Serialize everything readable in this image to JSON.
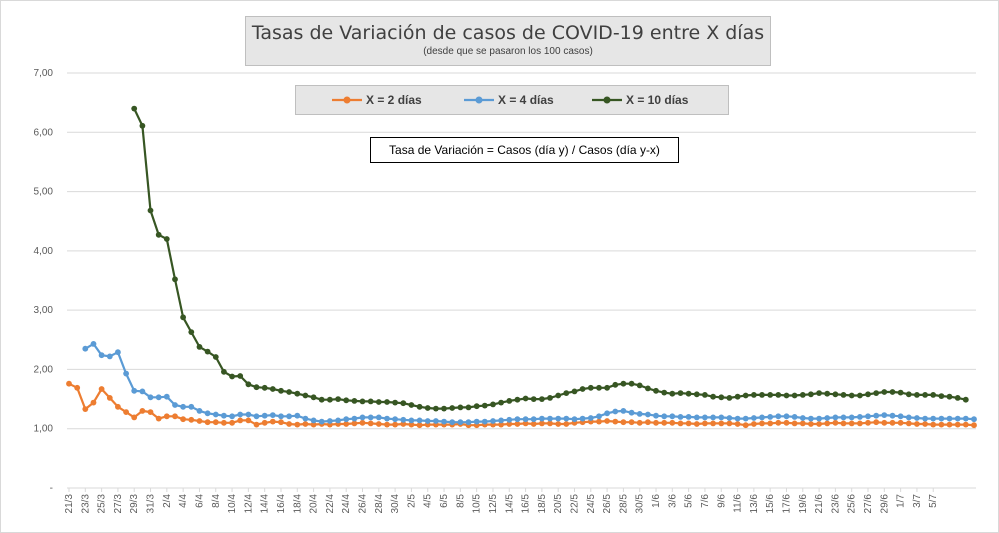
{
  "chart_data": {
    "type": "line",
    "title": "Tasas de Variación de casos de COVID-19 entre X días",
    "subtitle": "(desde que se pasaron los 100 casos)",
    "annotation": "Tasa de Variación = Casos (día y) / Casos (día y-x)",
    "ylim": [
      0,
      7
    ],
    "yticks": [
      "-",
      "1,00",
      "2,00",
      "3,00",
      "4,00",
      "5,00",
      "6,00",
      "7,00"
    ],
    "xtick_labels": [
      "21/3",
      "23/3",
      "25/3",
      "27/3",
      "29/3",
      "31/3",
      "2/4",
      "4/4",
      "6/4",
      "8/4",
      "10/4",
      "12/4",
      "14/4",
      "16/4",
      "18/4",
      "20/4",
      "22/4",
      "24/4",
      "26/4",
      "28/4",
      "30/4",
      "2/5",
      "4/5",
      "6/5",
      "8/5",
      "10/5",
      "12/5",
      "14/5",
      "16/5",
      "18/5",
      "20/5",
      "22/5",
      "24/5",
      "26/5",
      "28/5",
      "30/5",
      "1/6",
      "3/6",
      "5/6",
      "7/6",
      "9/6",
      "11/6",
      "13/6",
      "15/6",
      "17/6",
      "19/6",
      "21/6",
      "23/6",
      "25/6",
      "27/6",
      "29/6",
      "1/7",
      "3/7",
      "5/7"
    ],
    "grid": true,
    "legend_position": "top-center",
    "x_start": "21/3",
    "series": [
      {
        "name": "X = 2 días",
        "color": "#ed7d31",
        "values": [
          1.76,
          1.69,
          1.33,
          1.44,
          1.67,
          1.52,
          1.37,
          1.28,
          1.19,
          1.3,
          1.28,
          1.17,
          1.21,
          1.21,
          1.16,
          1.15,
          1.13,
          1.11,
          1.11,
          1.1,
          1.1,
          1.14,
          1.14,
          1.07,
          1.1,
          1.12,
          1.11,
          1.08,
          1.07,
          1.08,
          1.07,
          1.08,
          1.07,
          1.08,
          1.08,
          1.09,
          1.1,
          1.09,
          1.08,
          1.07,
          1.07,
          1.08,
          1.07,
          1.06,
          1.07,
          1.07,
          1.07,
          1.07,
          1.08,
          1.06,
          1.06,
          1.07,
          1.07,
          1.07,
          1.08,
          1.08,
          1.09,
          1.08,
          1.09,
          1.09,
          1.08,
          1.08,
          1.1,
          1.11,
          1.12,
          1.12,
          1.13,
          1.12,
          1.11,
          1.11,
          1.1,
          1.11,
          1.1,
          1.1,
          1.1,
          1.09,
          1.09,
          1.08,
          1.09,
          1.09,
          1.09,
          1.09,
          1.08,
          1.06,
          1.08,
          1.09,
          1.09,
          1.1,
          1.1,
          1.09,
          1.09,
          1.08,
          1.08,
          1.09,
          1.1,
          1.09,
          1.09,
          1.09,
          1.1,
          1.11,
          1.1,
          1.1,
          1.1,
          1.09,
          1.08,
          1.08,
          1.07,
          1.07,
          1.07,
          1.07,
          1.07,
          1.06
        ]
      },
      {
        "name": "X = 4 días",
        "color": "#5b9bd5",
        "values": [
          null,
          null,
          2.35,
          2.43,
          2.24,
          2.22,
          2.29,
          1.93,
          1.64,
          1.63,
          1.53,
          1.53,
          1.54,
          1.4,
          1.37,
          1.37,
          1.3,
          1.26,
          1.24,
          1.22,
          1.21,
          1.24,
          1.24,
          1.21,
          1.22,
          1.23,
          1.21,
          1.21,
          1.22,
          1.17,
          1.14,
          1.12,
          1.13,
          1.14,
          1.16,
          1.17,
          1.19,
          1.19,
          1.19,
          1.17,
          1.16,
          1.15,
          1.14,
          1.14,
          1.13,
          1.13,
          1.12,
          1.11,
          1.11,
          1.11,
          1.12,
          1.12,
          1.13,
          1.14,
          1.15,
          1.16,
          1.16,
          1.16,
          1.17,
          1.17,
          1.17,
          1.17,
          1.16,
          1.17,
          1.18,
          1.21,
          1.26,
          1.29,
          1.3,
          1.27,
          1.25,
          1.24,
          1.22,
          1.21,
          1.21,
          1.2,
          1.2,
          1.19,
          1.19,
          1.19,
          1.19,
          1.18,
          1.17,
          1.17,
          1.18,
          1.19,
          1.2,
          1.21,
          1.21,
          1.2,
          1.18,
          1.17,
          1.17,
          1.18,
          1.19,
          1.19,
          1.19,
          1.2,
          1.21,
          1.22,
          1.23,
          1.22,
          1.21,
          1.19,
          1.18,
          1.17,
          1.17,
          1.17,
          1.17,
          1.17,
          1.17,
          1.16
        ]
      },
      {
        "name": "X = 10 días",
        "color": "#375623",
        "values": [
          null,
          null,
          null,
          null,
          null,
          null,
          null,
          null,
          6.4,
          6.11,
          4.68,
          4.27,
          4.2,
          3.52,
          2.88,
          2.63,
          2.38,
          2.3,
          2.21,
          1.96,
          1.88,
          1.89,
          1.75,
          1.7,
          1.69,
          1.67,
          1.64,
          1.62,
          1.59,
          1.56,
          1.53,
          1.49,
          1.49,
          1.5,
          1.48,
          1.47,
          1.46,
          1.46,
          1.45,
          1.45,
          1.44,
          1.43,
          1.4,
          1.37,
          1.35,
          1.34,
          1.34,
          1.35,
          1.36,
          1.36,
          1.38,
          1.39,
          1.41,
          1.44,
          1.47,
          1.49,
          1.51,
          1.5,
          1.5,
          1.52,
          1.56,
          1.6,
          1.63,
          1.67,
          1.69,
          1.69,
          1.69,
          1.74,
          1.76,
          1.76,
          1.73,
          1.68,
          1.64,
          1.61,
          1.59,
          1.6,
          1.59,
          1.58,
          1.57,
          1.54,
          1.53,
          1.52,
          1.54,
          1.56,
          1.57,
          1.57,
          1.57,
          1.57,
          1.56,
          1.56,
          1.57,
          1.58,
          1.6,
          1.59,
          1.58,
          1.57,
          1.56,
          1.56,
          1.58,
          1.6,
          1.62,
          1.62,
          1.61,
          1.58,
          1.57,
          1.57,
          1.57,
          1.55,
          1.54,
          1.52,
          1.49
        ]
      }
    ]
  }
}
